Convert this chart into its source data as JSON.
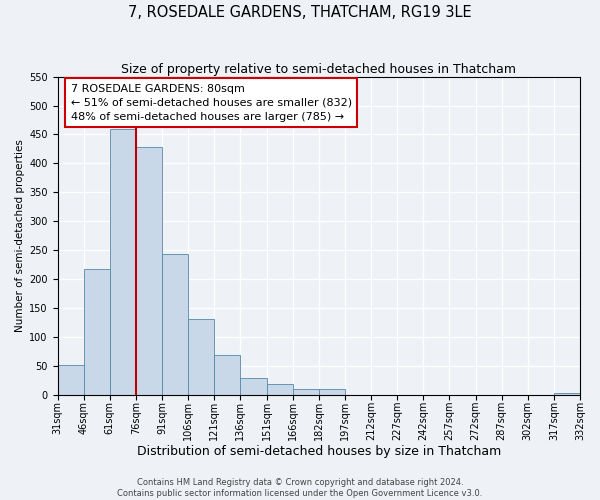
{
  "title": "7, ROSEDALE GARDENS, THATCHAM, RG19 3LE",
  "subtitle": "Size of property relative to semi-detached houses in Thatcham",
  "xlabel": "Distribution of semi-detached houses by size in Thatcham",
  "ylabel": "Number of semi-detached properties",
  "bar_values": [
    52,
    218,
    460,
    428,
    243,
    130,
    68,
    29,
    19,
    10,
    10,
    0,
    0,
    0,
    0,
    0,
    0,
    0,
    0,
    2
  ],
  "bin_labels": [
    "31sqm",
    "46sqm",
    "61sqm",
    "76sqm",
    "91sqm",
    "106sqm",
    "121sqm",
    "136sqm",
    "151sqm",
    "166sqm",
    "182sqm",
    "197sqm",
    "212sqm",
    "227sqm",
    "242sqm",
    "257sqm",
    "272sqm",
    "287sqm",
    "302sqm",
    "317sqm",
    "332sqm"
  ],
  "bar_color": "#c8d8e8",
  "bar_edge_color": "#5588aa",
  "property_line_x": 3,
  "property_line_color": "#bb0000",
  "annotation_line1": "7 ROSEDALE GARDENS: 80sqm",
  "annotation_line2": "← 51% of semi-detached houses are smaller (832)",
  "annotation_line3": "48% of semi-detached houses are larger (785) →",
  "annotation_box_color": "#ffffff",
  "annotation_box_edge_color": "#cc0000",
  "ylim": [
    0,
    550
  ],
  "yticks": [
    0,
    50,
    100,
    150,
    200,
    250,
    300,
    350,
    400,
    450,
    500,
    550
  ],
  "footer_line1": "Contains HM Land Registry data © Crown copyright and database right 2024.",
  "footer_line2": "Contains public sector information licensed under the Open Government Licence v3.0.",
  "bg_color": "#eef2f6",
  "grid_color": "#ffffff",
  "title_fontsize": 10.5,
  "subtitle_fontsize": 9,
  "xlabel_fontsize": 9,
  "ylabel_fontsize": 7.5,
  "tick_fontsize": 7,
  "footer_fontsize": 6,
  "annot_fontsize": 8
}
